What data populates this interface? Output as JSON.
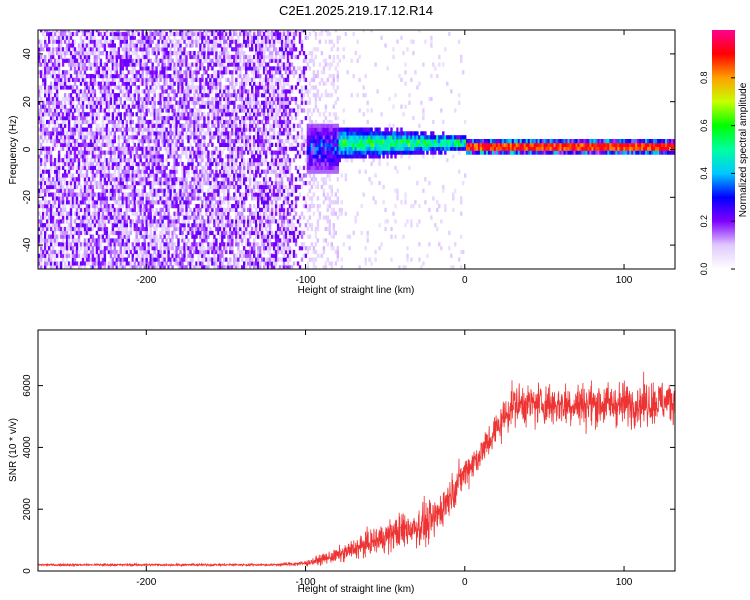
{
  "title": "C2E1.2025.219.17.12.R14",
  "chart_data": [
    {
      "type": "heatmap",
      "title": "C2E1.2025.219.17.12.R14",
      "xlabel": "Height of straight line (km)",
      "ylabel": "Frequency (Hz)",
      "xlim": [
        -268,
        132
      ],
      "ylim": [
        -50,
        50
      ],
      "x_ticks": [
        -200,
        -100,
        0,
        100
      ],
      "y_ticks": [
        -40,
        -20,
        0,
        20,
        40
      ],
      "colorbar": {
        "label": "Normalized spectral amplitude",
        "range": [
          0,
          1
        ],
        "ticks": [
          0.0,
          0.2,
          0.4,
          0.6,
          0.8
        ],
        "tick_labels": [
          "0.0",
          "0.2",
          "0.4",
          "0.6",
          "0.8"
        ]
      },
      "regions": [
        {
          "x_range": [
            -268,
            -100
          ],
          "description_values": {
            "freq_spread_hz": [
              -50,
              50
            ],
            "amplitude": [
              0.05,
              0.2
            ]
          }
        },
        {
          "x_range": [
            -100,
            -60
          ],
          "description_values": {
            "freq_spread_hz": [
              -8,
              8
            ],
            "amplitude": [
              0.2,
              0.45
            ]
          }
        },
        {
          "x_range": [
            -60,
            0
          ],
          "description_values": {
            "freq_spread_hz": [
              -5,
              5
            ],
            "amplitude": [
              0.3,
              0.6
            ]
          }
        },
        {
          "x_range": [
            0,
            132
          ],
          "description_values": {
            "freq_spread_hz": [
              -2,
              2
            ],
            "amplitude": [
              0.7,
              0.95
            ]
          }
        }
      ]
    },
    {
      "type": "line",
      "xlabel": "Height of straight line (km)",
      "ylabel": "SNR (10 * v/v)",
      "xlim": [
        -268,
        132
      ],
      "ylim": [
        0,
        7800
      ],
      "x_ticks": [
        -200,
        -100,
        0,
        100
      ],
      "y_ticks": [
        0,
        2000,
        4000,
        6000
      ],
      "color": "#ee3333",
      "envelope": [
        {
          "x": -268,
          "mean": 200,
          "spread": 60
        },
        {
          "x": -200,
          "mean": 200,
          "spread": 60
        },
        {
          "x": -120,
          "mean": 200,
          "spread": 60
        },
        {
          "x": -100,
          "mean": 250,
          "spread": 150
        },
        {
          "x": -80,
          "mean": 500,
          "spread": 400
        },
        {
          "x": -60,
          "mean": 900,
          "spread": 700
        },
        {
          "x": -40,
          "mean": 1300,
          "spread": 1000
        },
        {
          "x": -20,
          "mean": 1600,
          "spread": 1200
        },
        {
          "x": -10,
          "mean": 2400,
          "spread": 1000
        },
        {
          "x": 0,
          "mean": 3200,
          "spread": 900
        },
        {
          "x": 10,
          "mean": 3800,
          "spread": 900
        },
        {
          "x": 20,
          "mean": 4600,
          "spread": 1000
        },
        {
          "x": 30,
          "mean": 5400,
          "spread": 1100
        },
        {
          "x": 60,
          "mean": 5400,
          "spread": 1200
        },
        {
          "x": 100,
          "mean": 5400,
          "spread": 1200
        },
        {
          "x": 132,
          "mean": 5500,
          "spread": 1200
        }
      ]
    }
  ]
}
